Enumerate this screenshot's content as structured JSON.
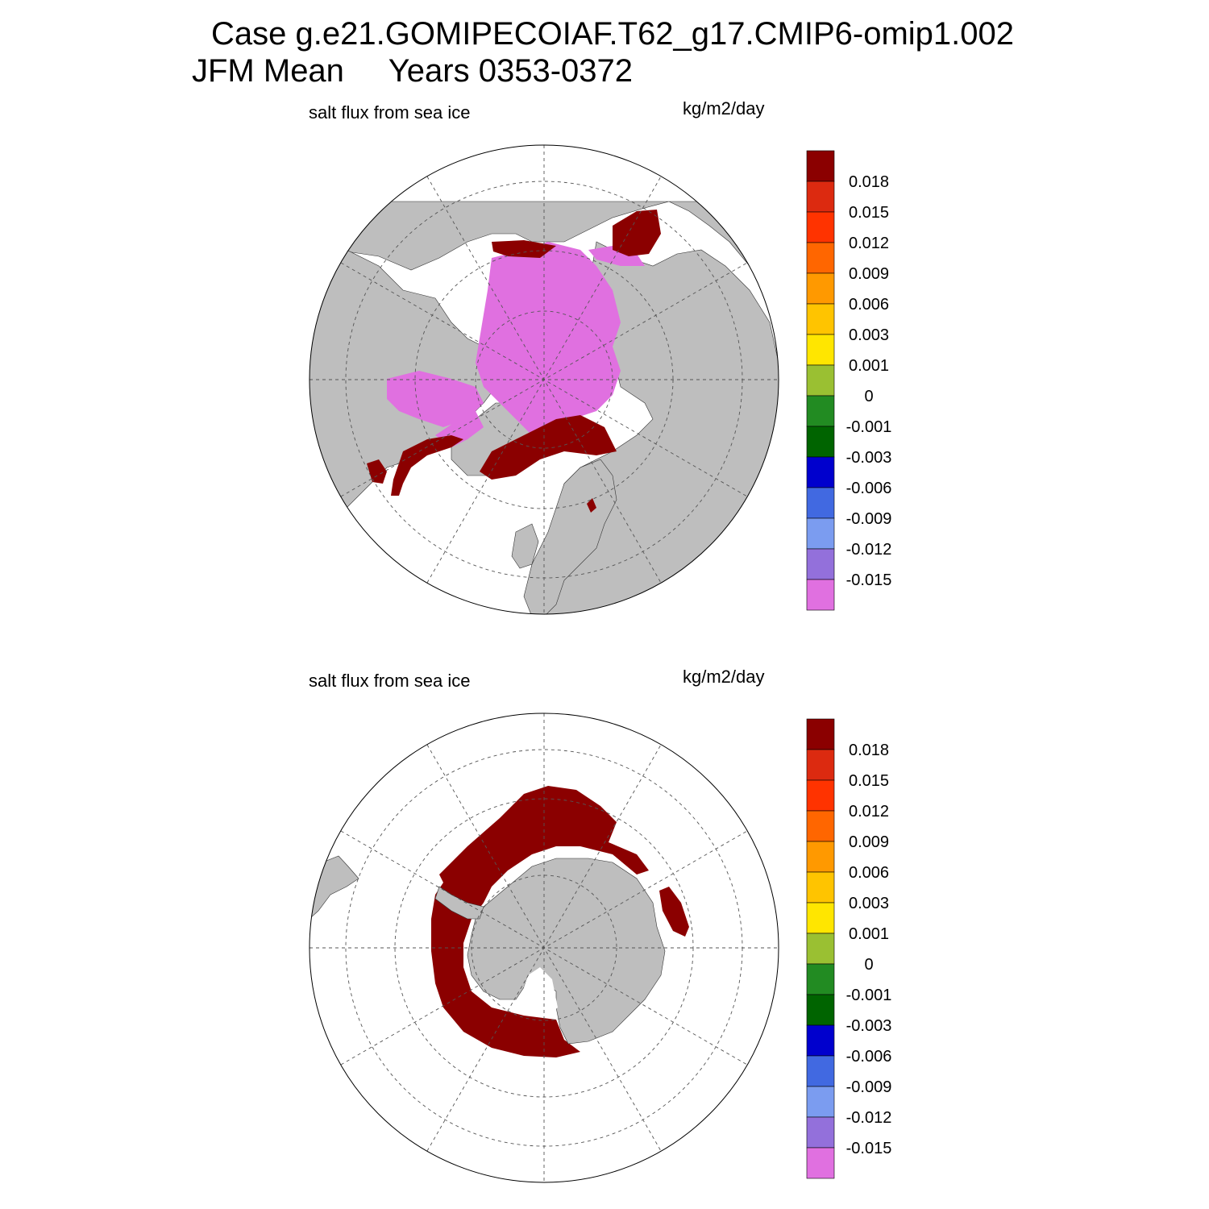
{
  "figure": {
    "title_line1": "Case g.e21.GOMIPECOIAF.T62_g17.CMIP6-omip1.002",
    "title_line2": "JFM Mean     Years 0353-0372"
  },
  "panels": [
    {
      "id": "north",
      "left_label": "salt flux from sea ice",
      "right_label": "kg/m2/day",
      "hemisphere": "Northern Hemisphere polar stereographic"
    },
    {
      "id": "south",
      "left_label": "salt flux from sea ice",
      "right_label": "kg/m2/day",
      "hemisphere": "Southern Hemisphere polar stereographic"
    }
  ],
  "colorbar": {
    "labels": [
      "0.018",
      "0.015",
      "0.012",
      "0.009",
      "0.006",
      "0.003",
      "0.001",
      "0",
      "-0.001",
      "-0.003",
      "-0.006",
      "-0.009",
      "-0.012",
      "-0.015"
    ],
    "colors_top_to_bottom": [
      "#8b0000",
      "#dc2a10",
      "#ff3300",
      "#ff6600",
      "#ff9900",
      "#ffc400",
      "#ffe600",
      "#9ac032",
      "#228b22",
      "#006400",
      "#0000cd",
      "#4169e1",
      "#7b9cf0",
      "#9370db",
      "#e070e0"
    ]
  },
  "map_colors": {
    "land": "#bebebe",
    "ocean": "#ffffff",
    "high_positive_flux": "#8b0000",
    "strong_negative_flux": "#e070e0"
  }
}
